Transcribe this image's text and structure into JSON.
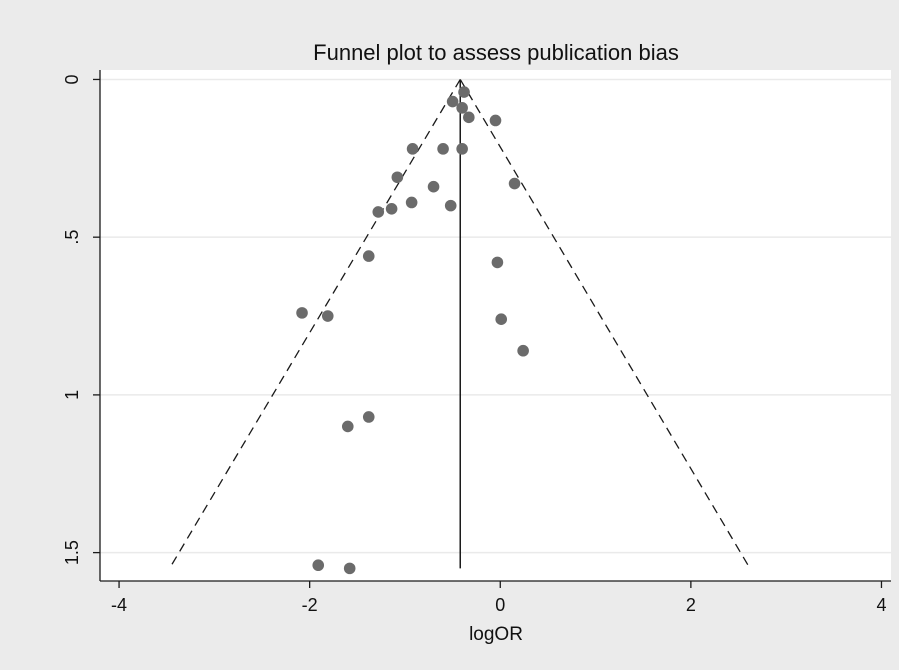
{
  "chart_data": {
    "type": "scatter",
    "title": "Funnel plot to assess publication bias",
    "xlabel": "logOR",
    "ylabel": "",
    "xlim": [
      -4.2,
      4.1
    ],
    "ylim": [
      1.59,
      -0.03
    ],
    "y_reversed": true,
    "x_ticks": [
      -4,
      -2,
      0,
      2,
      4
    ],
    "x_tick_labels": [
      "-4",
      "-2",
      "0",
      "2",
      "4"
    ],
    "y_ticks": [
      0,
      0.5,
      1,
      1.5
    ],
    "y_tick_labels": [
      "0",
      ".5",
      "1",
      "1.5"
    ],
    "grid": "horizontal",
    "legend": "none",
    "pooled_estimate": -0.42,
    "pooled_line_range": [
      0,
      1.55
    ],
    "confidence_limits": {
      "apex": [
        -0.42,
        0
      ],
      "left_end": [
        -3.47,
        1.55
      ],
      "right_end": [
        2.62,
        1.55
      ]
    },
    "series": [
      {
        "points": [
          [
            -0.38,
            0.04
          ],
          [
            -0.5,
            0.07
          ],
          [
            -0.4,
            0.09
          ],
          [
            -0.33,
            0.12
          ],
          [
            -0.05,
            0.13
          ],
          [
            -0.92,
            0.22
          ],
          [
            -0.6,
            0.22
          ],
          [
            -0.4,
            0.22
          ],
          [
            -1.08,
            0.31
          ],
          [
            -0.7,
            0.34
          ],
          [
            0.15,
            0.33
          ],
          [
            -0.93,
            0.39
          ],
          [
            -0.52,
            0.4
          ],
          [
            -1.14,
            0.41
          ],
          [
            -1.28,
            0.42
          ],
          [
            -1.38,
            0.56
          ],
          [
            -0.03,
            0.58
          ],
          [
            -2.08,
            0.74
          ],
          [
            -1.81,
            0.75
          ],
          [
            0.01,
            0.76
          ],
          [
            0.24,
            0.86
          ],
          [
            -1.38,
            1.07
          ],
          [
            -1.6,
            1.1
          ],
          [
            -1.91,
            1.54
          ],
          [
            -1.58,
            1.55
          ]
        ]
      }
    ],
    "colors": {
      "background": "#ebebeb",
      "plot_area": "#ffffff",
      "grid": "#eaeaea",
      "points": "#6b6b6b",
      "lines": "#1a1a1a"
    }
  }
}
